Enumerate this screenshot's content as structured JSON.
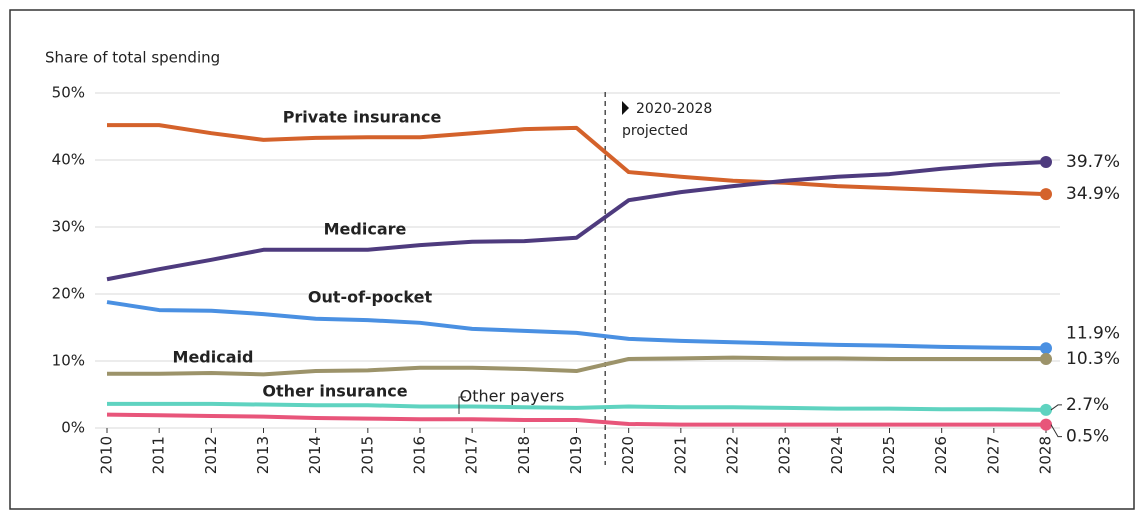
{
  "chart_data": {
    "type": "line",
    "y_axis_label": "Share of total spending",
    "annotation": [
      "2020-2028",
      "projected"
    ],
    "categories": [
      "2010",
      "2011",
      "2012",
      "2013",
      "2014",
      "2015",
      "2016",
      "2017",
      "2018",
      "2019",
      "2020",
      "2021",
      "2022",
      "2023",
      "2024",
      "2025",
      "2026",
      "2027",
      "2028"
    ],
    "ylim": [
      0,
      50
    ],
    "yticks": [
      {
        "value": 0,
        "label": "0%"
      },
      {
        "value": 10,
        "label": "10%"
      },
      {
        "value": 20,
        "label": "20%"
      },
      {
        "value": 30,
        "label": "30%"
      },
      {
        "value": 40,
        "label": "40%"
      },
      {
        "value": 50,
        "label": "50%"
      }
    ],
    "grid": true,
    "series": [
      {
        "name": "Private insurance",
        "color": "#d4622b",
        "values": [
          45.2,
          45.2,
          44.0,
          43.0,
          43.3,
          43.4,
          43.4,
          44.0,
          44.6,
          44.8,
          38.2,
          37.5,
          36.9,
          36.6,
          36.1,
          35.8,
          35.5,
          35.2,
          34.9
        ],
        "value_labels": [
          null,
          null,
          null,
          null,
          null,
          null,
          null,
          null,
          null,
          null,
          null,
          null,
          null,
          null,
          null,
          null,
          null,
          null,
          "34.9%"
        ]
      },
      {
        "name": "Medicare",
        "color": "#4e3b7e",
        "values": [
          22.2,
          23.7,
          25.1,
          26.6,
          26.6,
          26.6,
          27.3,
          27.8,
          27.9,
          28.4,
          34.0,
          35.2,
          36.1,
          36.9,
          37.5,
          37.9,
          38.7,
          39.3,
          39.7
        ],
        "value_labels": [
          null,
          null,
          null,
          null,
          null,
          null,
          null,
          null,
          null,
          null,
          null,
          null,
          null,
          null,
          null,
          null,
          null,
          null,
          "39.7%"
        ]
      },
      {
        "name": "Out-of-pocket",
        "color": "#4a90e2",
        "values": [
          18.8,
          17.6,
          17.5,
          17.0,
          16.3,
          16.1,
          15.7,
          14.8,
          14.5,
          14.2,
          13.3,
          13.0,
          12.8,
          12.6,
          12.4,
          12.3,
          12.1,
          12.0,
          11.9
        ],
        "value_labels": [
          null,
          null,
          null,
          null,
          null,
          null,
          null,
          null,
          null,
          null,
          null,
          null,
          null,
          null,
          null,
          null,
          null,
          null,
          "11.9%"
        ]
      },
      {
        "name": "Medicaid",
        "color": "#9c936a",
        "values": [
          8.1,
          8.1,
          8.2,
          8.0,
          8.5,
          8.6,
          9.0,
          9.0,
          8.8,
          8.5,
          10.3,
          10.4,
          10.5,
          10.4,
          10.4,
          10.3,
          10.3,
          10.3,
          10.3
        ],
        "value_labels": [
          null,
          null,
          null,
          null,
          null,
          null,
          null,
          null,
          null,
          null,
          null,
          null,
          null,
          null,
          null,
          null,
          null,
          null,
          "10.3%"
        ]
      },
      {
        "name": "Other insurance",
        "color": "#5fd3c0",
        "values": [
          3.6,
          3.6,
          3.6,
          3.5,
          3.4,
          3.4,
          3.2,
          3.2,
          3.1,
          3.0,
          3.2,
          3.1,
          3.1,
          3.0,
          2.9,
          2.9,
          2.8,
          2.8,
          2.7
        ],
        "value_labels": [
          null,
          null,
          null,
          null,
          null,
          null,
          null,
          null,
          null,
          null,
          null,
          null,
          null,
          null,
          null,
          null,
          null,
          null,
          "2.7%"
        ]
      },
      {
        "name": "Other payers",
        "color": "#e8557a",
        "values": [
          2.0,
          1.9,
          1.8,
          1.7,
          1.5,
          1.4,
          1.3,
          1.3,
          1.2,
          1.2,
          0.6,
          0.5,
          0.5,
          0.5,
          0.5,
          0.5,
          0.5,
          0.5,
          0.5
        ],
        "value_labels": [
          null,
          null,
          null,
          null,
          null,
          null,
          null,
          null,
          null,
          null,
          null,
          null,
          null,
          null,
          null,
          null,
          null,
          null,
          "0.5%"
        ]
      }
    ]
  }
}
